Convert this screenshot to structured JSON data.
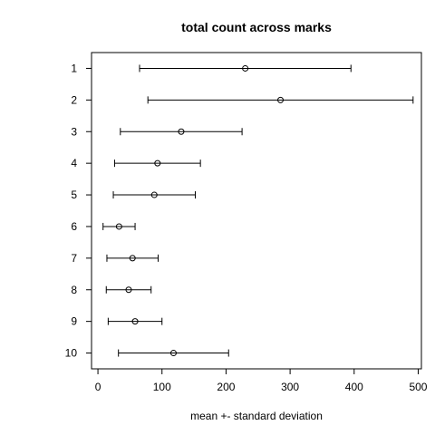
{
  "chart_data": {
    "type": "errorbar-dotplot",
    "title": "total count across marks",
    "xlabel": "mean +- standard deviation",
    "ylabel": "",
    "xlim": [
      -10,
      505
    ],
    "x_ticks": [
      0,
      100,
      200,
      300,
      400,
      500
    ],
    "categories": [
      "1",
      "2",
      "3",
      "4",
      "5",
      "6",
      "7",
      "8",
      "9",
      "10"
    ],
    "means": [
      230,
      285,
      130,
      93,
      88,
      33,
      54,
      48,
      58,
      118
    ],
    "sd": [
      165,
      207,
      95,
      67,
      64,
      25,
      40,
      35,
      42,
      86
    ],
    "grid": false,
    "legend": "none"
  }
}
